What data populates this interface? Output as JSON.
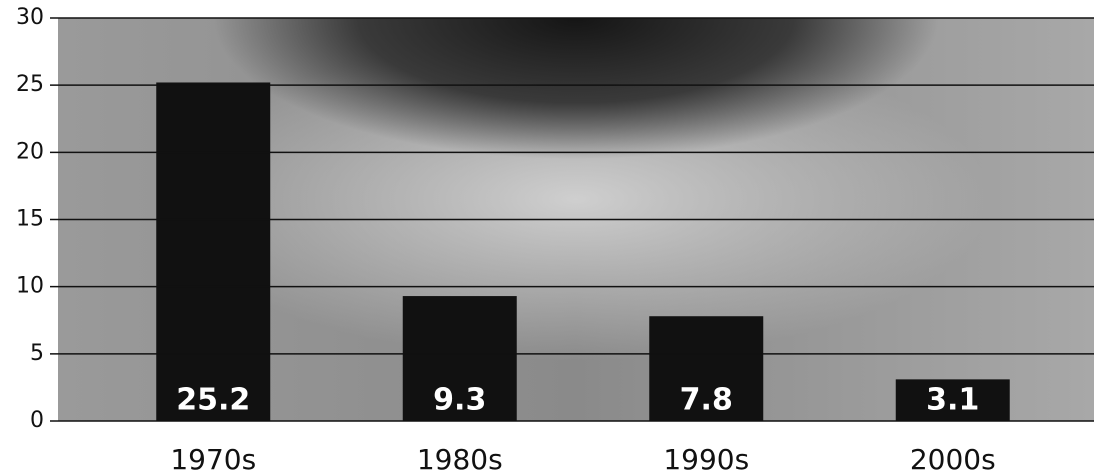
{
  "chart_data": {
    "type": "bar",
    "categories": [
      "1970s",
      "1980s",
      "1990s",
      "2000s"
    ],
    "values": [
      25.2,
      9.3,
      7.8,
      3.1
    ],
    "color": "#111111",
    "ylim": [
      0,
      30
    ],
    "yticks": [
      0,
      5,
      10,
      15,
      20,
      25,
      30
    ],
    "grid": true
  }
}
